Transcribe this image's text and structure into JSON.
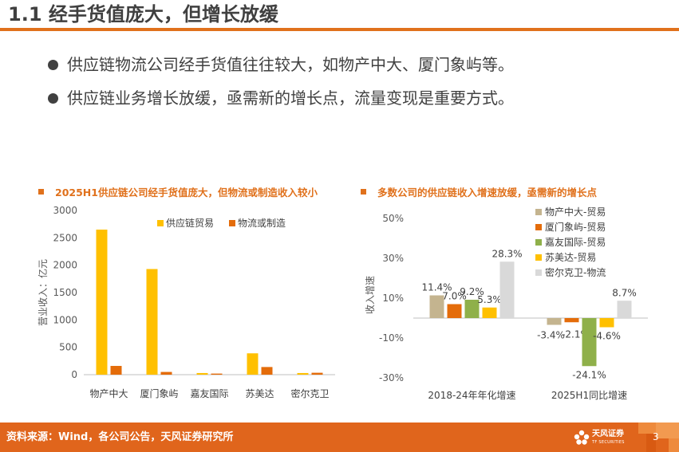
{
  "slide": {
    "title": "1.1 经手货值庞大，但增长放缓",
    "bullets": [
      "供应链物流公司经手货值往往较大，如物产中大、厦门象屿等。",
      "供应链业务增长放缓，亟需新的增长点，流量变现是重要方式。"
    ],
    "page_number": "3"
  },
  "footer": {
    "source": "资料来源：Wind，各公司公告，天风证券研究所",
    "brand": "天风证券",
    "brand_sub": "TF SECURITIES",
    "logo_icon": "tf-flower-logo-icon",
    "color": "#e0651c"
  },
  "colors": {
    "accent": "#e0711c",
    "gold": "#ffc000",
    "orange": "#e46c0a",
    "tan": "#c4b48f",
    "green": "#8fb04a",
    "gray": "#d9d9d9"
  },
  "chart_data": [
    {
      "heading": "2025H1供应链公司经手货值庞大，但物流或制造收入较小",
      "type": "bar",
      "title": "",
      "ylabel": "营业收入：亿元",
      "xlabel": "",
      "ylim": [
        0,
        3000
      ],
      "yticks": [
        0,
        500,
        1000,
        1500,
        2000,
        2500,
        3000
      ],
      "grid": false,
      "legend_position": "top",
      "categories": [
        "物产中大",
        "厦门象屿",
        "嘉友国际",
        "苏美达",
        "密尔克卫"
      ],
      "series": [
        {
          "name": "供应链贸易",
          "color": "#ffc000",
          "values": [
            2650,
            1930,
            30,
            390,
            30
          ]
        },
        {
          "name": "物流或制造",
          "color": "#e46c0a",
          "values": [
            160,
            50,
            20,
            140,
            35
          ]
        }
      ]
    },
    {
      "heading": "多数公司的供应链收入增速放缓，亟需新的增长点",
      "type": "bar",
      "title": "",
      "ylabel": "收入增速",
      "xlabel": "",
      "ylim": [
        -30,
        50
      ],
      "yticks": [
        -30,
        -10,
        10,
        30,
        50
      ],
      "tick_format": "percent",
      "grid": false,
      "legend_position": "top-right",
      "categories": [
        "2018-24年年化增速",
        "2025H1同比增速"
      ],
      "series": [
        {
          "name": "物产中大-贸易",
          "color": "#c4b48f",
          "values": [
            11.4,
            -3.4
          ],
          "labels": [
            "11.4%",
            "-3.4%"
          ]
        },
        {
          "name": "厦门象屿-贸易",
          "color": "#e46c0a",
          "values": [
            7.0,
            -2.1
          ],
          "labels": [
            "7.0%",
            "-2.1%"
          ]
        },
        {
          "name": "嘉友国际-贸易",
          "color": "#8fb04a",
          "values": [
            9.2,
            -24.1
          ],
          "labels": [
            "9.2%",
            "-24.1%"
          ]
        },
        {
          "name": "苏美达-贸易",
          "color": "#ffc000",
          "values": [
            5.3,
            -4.6
          ],
          "labels": [
            "5.3%",
            "-4.6%"
          ]
        },
        {
          "name": "密尔克卫-物流",
          "color": "#d9d9d9",
          "values": [
            28.3,
            8.7
          ],
          "labels": [
            "28.3%",
            "8.7%"
          ]
        }
      ]
    }
  ]
}
